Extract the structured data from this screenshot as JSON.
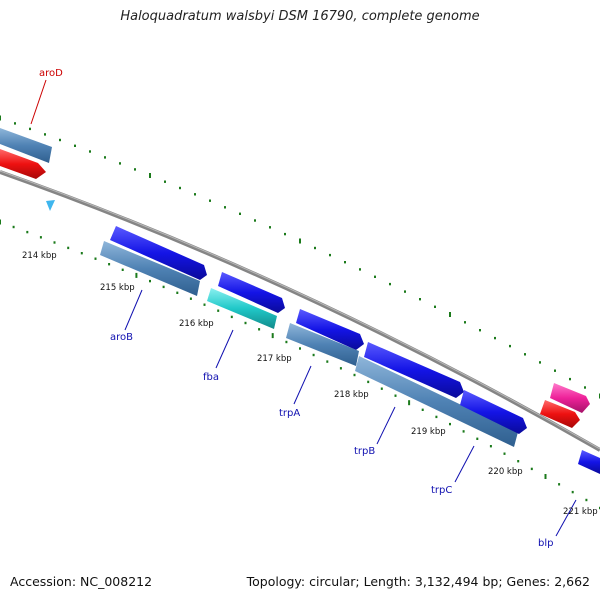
{
  "title": "Haloquadratum walsbyi DSM 16790, complete genome",
  "footer": {
    "accession": "Accession: NC_008212",
    "summary": "Topology: circular; Length: 3,132,494 bp; Genes: 2,662"
  },
  "colors": {
    "backbone": "#858585",
    "tick": "#1b7a1b",
    "kbp_label": "#111111",
    "gene_label_blue": "#1010b0",
    "gene_label_red": "#cc0000",
    "gene_blue": "#1414e6",
    "gene_steel": "#4f82b4",
    "gene_cyan": "#20c8c8",
    "gene_red": "#ee1111",
    "gene_pink": "#ee2299",
    "marker": "#3fb6ee"
  },
  "kbp_labels": [
    {
      "kbp": 214,
      "text": "214 kbp"
    },
    {
      "kbp": 215,
      "text": "215 kbp"
    },
    {
      "kbp": 216,
      "text": "216 kbp"
    },
    {
      "kbp": 217,
      "text": "217 kbp"
    },
    {
      "kbp": 218,
      "text": "218 kbp"
    },
    {
      "kbp": 219,
      "text": "219 kbp"
    },
    {
      "kbp": 220,
      "text": "220 kbp"
    },
    {
      "kbp": 221,
      "text": "221 kbp"
    }
  ],
  "gene_labels": [
    {
      "text": "aroD",
      "color": "red"
    },
    {
      "text": "aroB",
      "color": "blue"
    },
    {
      "text": "fba",
      "color": "blue"
    },
    {
      "text": "trpA",
      "color": "blue"
    },
    {
      "text": "trpB",
      "color": "blue"
    },
    {
      "text": "trpC",
      "color": "blue"
    },
    {
      "text": "blp",
      "color": "blue"
    }
  ]
}
